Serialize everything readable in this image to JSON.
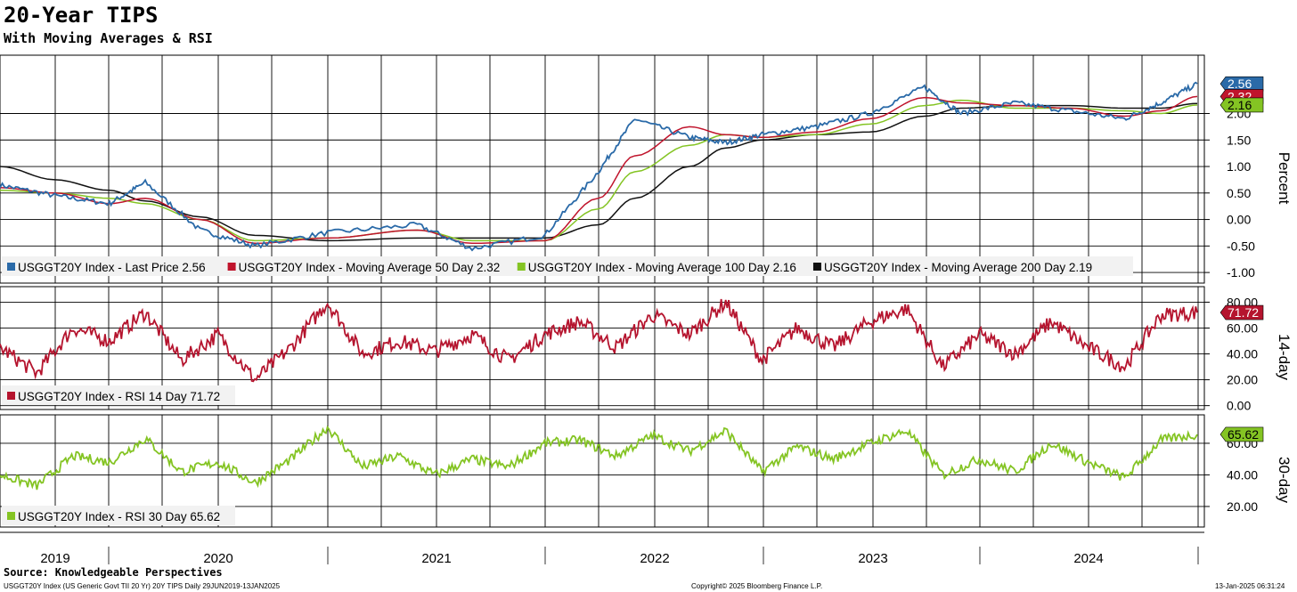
{
  "header": {
    "title": "20-Year TIPS",
    "subtitle": "With Moving Averages & RSI"
  },
  "footer": {
    "source": "Source: Knowledgeable Perspectives",
    "ticker_note": "USGGT20Y Index (US Generic Govt TII 20 Yr) 20Y TIPS  Daily 29JUN2019-13JAN2025",
    "copyright": "Copyright© 2025 Bloomberg Finance L.P.",
    "timestamp": "13-Jan-2025 06:31:24"
  },
  "colors": {
    "last_price": "#2a6aa8",
    "ma50": "#c0142c",
    "ma100": "#84c423",
    "ma200": "#111111",
    "rsi14": "#b5142e",
    "rsi30": "#84c423",
    "grid": "#000000"
  },
  "chart_data": [
    {
      "type": "line",
      "panel": "price",
      "ylabel": "Percent",
      "ylim": [
        -1.2,
        3.1
      ],
      "yticks": [
        "-1.00",
        "-0.50",
        "0.00",
        "0.50",
        "1.00",
        "1.50",
        "2.00",
        "2.32",
        "2.56"
      ],
      "grid": true,
      "legend_position": "bottom-left",
      "x": [
        "2019-07",
        "2019-10",
        "2020-01",
        "2020-03",
        "2020-06",
        "2020-09",
        "2021-01",
        "2021-06",
        "2021-09",
        "2022-01",
        "2022-04",
        "2022-06",
        "2022-09",
        "2022-11",
        "2023-01",
        "2023-04",
        "2023-07",
        "2023-10",
        "2023-12",
        "2024-03",
        "2024-06",
        "2024-09",
        "2024-11",
        "2025-01"
      ],
      "series": [
        {
          "name": "USGGT20Y Index - Last Price 2.56",
          "last_label": "2.56",
          "values": [
            0.65,
            0.45,
            0.3,
            0.7,
            -0.2,
            -0.5,
            -0.25,
            -0.1,
            -0.55,
            -0.3,
            0.9,
            1.9,
            1.55,
            1.45,
            1.6,
            1.75,
            2.0,
            2.5,
            2.0,
            2.2,
            2.05,
            1.9,
            2.2,
            2.56
          ]
        },
        {
          "name": "USGGT20Y Index - Moving Average 50 Day 2.32",
          "last_label": "2.32",
          "values": [
            0.6,
            0.5,
            0.3,
            0.4,
            0.0,
            -0.45,
            -0.35,
            -0.2,
            -0.45,
            -0.4,
            0.4,
            1.2,
            1.75,
            1.6,
            1.55,
            1.65,
            1.9,
            2.3,
            2.2,
            2.15,
            2.1,
            1.95,
            2.05,
            2.32
          ]
        },
        {
          "name": "USGGT20Y Index - Moving Average 100 Day 2.16",
          "last_label": "2.16",
          "values": [
            0.55,
            0.5,
            0.4,
            0.3,
            0.0,
            -0.4,
            -0.35,
            -0.2,
            -0.4,
            -0.4,
            0.2,
            0.9,
            1.4,
            1.6,
            1.55,
            1.6,
            1.8,
            2.15,
            2.25,
            2.1,
            2.1,
            2.05,
            2.0,
            2.16
          ]
        },
        {
          "name": "USGGT20Y Index - Moving Average 200 Day 2.19",
          "last_label": "2.19",
          "values": [
            1.0,
            0.75,
            0.55,
            0.35,
            0.05,
            -0.3,
            -0.4,
            -0.35,
            -0.35,
            -0.35,
            -0.1,
            0.4,
            1.0,
            1.35,
            1.5,
            1.6,
            1.65,
            1.95,
            2.1,
            2.15,
            2.15,
            2.1,
            2.1,
            2.19
          ]
        }
      ]
    },
    {
      "type": "line",
      "panel": "rsi14",
      "ylabel": "14-day",
      "ylim": [
        -3,
        92
      ],
      "yticks": [
        "0.00",
        "20.00",
        "40.00",
        "60.00",
        "80.00"
      ],
      "grid": true,
      "legend_position": "bottom-left",
      "x": [
        "2019-07",
        "2019-09",
        "2019-11",
        "2020-01",
        "2020-03",
        "2020-05",
        "2020-07",
        "2020-09",
        "2020-11",
        "2021-01",
        "2021-03",
        "2021-05",
        "2021-07",
        "2021-09",
        "2021-11",
        "2022-01",
        "2022-03",
        "2022-05",
        "2022-07",
        "2022-09",
        "2022-11",
        "2023-01",
        "2023-03",
        "2023-05",
        "2023-07",
        "2023-09",
        "2023-11",
        "2024-01",
        "2024-03",
        "2024-05",
        "2024-07",
        "2024-09",
        "2024-11",
        "2025-01"
      ],
      "series": [
        {
          "name": "USGGT20Y Index - RSI 14 Day 71.72",
          "last_label": "71.72",
          "values": [
            45,
            25,
            60,
            50,
            72,
            35,
            55,
            20,
            45,
            80,
            40,
            50,
            42,
            55,
            35,
            55,
            65,
            45,
            70,
            55,
            80,
            35,
            60,
            45,
            65,
            75,
            30,
            55,
            40,
            65,
            45,
            30,
            70,
            72
          ]
        }
      ]
    },
    {
      "type": "line",
      "panel": "rsi30",
      "ylabel": "30-day",
      "ylim": [
        7,
        78
      ],
      "yticks": [
        "20.00",
        "40.00",
        "60.00"
      ],
      "grid": true,
      "legend_position": "bottom-left",
      "x": [
        "2019-07",
        "2019-09",
        "2019-11",
        "2020-01",
        "2020-03",
        "2020-05",
        "2020-07",
        "2020-09",
        "2020-11",
        "2021-01",
        "2021-03",
        "2021-05",
        "2021-07",
        "2021-09",
        "2021-11",
        "2022-01",
        "2022-03",
        "2022-05",
        "2022-07",
        "2022-09",
        "2022-11",
        "2023-01",
        "2023-03",
        "2023-05",
        "2023-07",
        "2023-09",
        "2023-11",
        "2024-01",
        "2024-03",
        "2024-05",
        "2024-07",
        "2024-09",
        "2024-11",
        "2025-01"
      ],
      "series": [
        {
          "name": "USGGT20Y Index - RSI 30 Day 65.62",
          "last_label": "65.62",
          "values": [
            40,
            33,
            52,
            48,
            63,
            42,
            48,
            35,
            50,
            70,
            45,
            52,
            40,
            50,
            45,
            60,
            62,
            52,
            65,
            55,
            68,
            42,
            58,
            50,
            60,
            68,
            40,
            50,
            42,
            60,
            48,
            38,
            62,
            65.62
          ]
        }
      ]
    }
  ],
  "x_axis_years": [
    "2019",
    "2020",
    "2021",
    "2022",
    "2023",
    "2024"
  ]
}
